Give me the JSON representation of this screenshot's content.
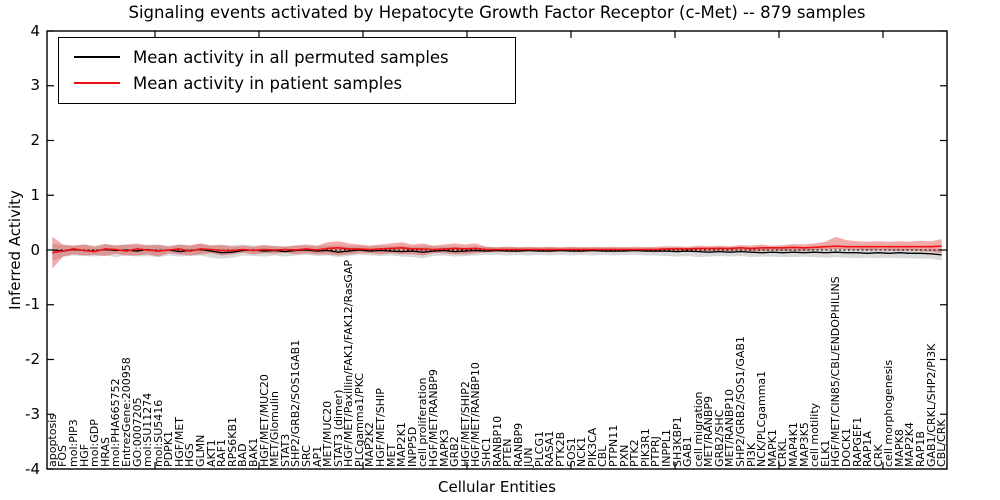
{
  "chart_data": {
    "type": "line",
    "title": "Signaling events activated by Hepatocyte Growth Factor Receptor (c-Met) -- 879 samples",
    "xlabel": "Cellular Entities",
    "ylabel": "Inferred Activity",
    "ylim": [
      -4,
      4
    ],
    "y_tick_labels": [
      "4",
      "3",
      "2",
      "1",
      "0",
      "-1",
      "-2",
      "-3",
      "-4"
    ],
    "grid": false,
    "legend_position": "upper left",
    "categories": [
      "apoptosis",
      "FOS",
      "mol:PIP3",
      "HGF",
      "mol:GDP",
      "HRAS",
      "mol:PHA665752",
      "EntrezGene:200958",
      "GO:0007205",
      "mol:SU11274",
      "mol:SU5416",
      "PDPK1",
      "HGF/MET",
      "HGS",
      "GLMN",
      "AKT1",
      "RAF1",
      "RPS6KB1",
      "BAD",
      "BAK1",
      "HGF/MET/MUC20",
      "MET/Glomulin",
      "STAT3",
      "SHP2/GRB2/SOS1GAB1",
      "SRC",
      "AP1",
      "MET/MUC20",
      "STAT3 (dimer)",
      "HGF/MET/Paxillin/FAK1/FAK12/RasGAP",
      "PLCgamma1/PKC",
      "MAP2K2",
      "HGF/MET/SHIP",
      "MET",
      "MAP2K1",
      "INPP5D",
      "cell proliferation",
      "HGF/MET/RANBP9",
      "MAPK3",
      "GRB2",
      "HGF/MET/SHIP2",
      "HGF/MET/RANBP10",
      "SHC1",
      "RANBP10",
      "PTEN",
      "RANBP9",
      "JUN",
      "PLCG1",
      "RASA1",
      "PTK2B",
      "SOS1",
      "NCK1",
      "PIK3CA",
      "CBL",
      "PTPN11",
      "PXN",
      "PTK2",
      "PIK3R1",
      "PTPRJ",
      "INPPL1",
      "SH3KBP1",
      "GAB1",
      "cell migration",
      "MET/RANBP9",
      "GRB2/SHC",
      "MET/RANBP10",
      "SHP2/GRB2/SOS1/GAB1",
      "PI3K",
      "NCK/PLCgamma1",
      "MAPK1",
      "CRKL",
      "MAP4K1",
      "MAP3K5",
      "cell motility",
      "ELK1",
      "HGF/MET/CIN85/CBL/ENDOPHILINS",
      "DOCK1",
      "RAPGEF1",
      "RAP1A",
      "CRK",
      "cell morphogenesis",
      "MAPK8",
      "MAP2K4",
      "RAP1B",
      "GAB1/CRKL/SHP2/PI3K",
      "CBL/CRK"
    ],
    "series": [
      {
        "name": "Mean activity in all permuted samples",
        "color": "#000000",
        "stroke_width": 1.3,
        "values": [
          0.0,
          -0.02,
          0.01,
          -0.01,
          -0.02,
          0.01,
          -0.01,
          0.0,
          -0.02,
          0.01,
          -0.02,
          0.0,
          -0.03,
          -0.01,
          0.01,
          -0.02,
          -0.05,
          -0.04,
          -0.01,
          0.0,
          -0.02,
          -0.01,
          -0.03,
          -0.01,
          0.0,
          -0.02,
          -0.01,
          -0.04,
          -0.02,
          0.0,
          -0.02,
          -0.01,
          -0.02,
          -0.03,
          -0.02,
          -0.04,
          -0.02,
          -0.01,
          -0.03,
          -0.02,
          -0.01,
          -0.02,
          -0.01,
          -0.02,
          -0.02,
          -0.01,
          -0.02,
          -0.02,
          -0.01,
          -0.02,
          -0.02,
          -0.01,
          -0.02,
          -0.02,
          -0.02,
          -0.01,
          -0.02,
          -0.02,
          -0.02,
          -0.03,
          -0.02,
          -0.03,
          -0.04,
          -0.03,
          -0.04,
          -0.03,
          -0.04,
          -0.05,
          -0.04,
          -0.05,
          -0.04,
          -0.05,
          -0.04,
          -0.05,
          -0.04,
          -0.05,
          -0.05,
          -0.06,
          -0.05,
          -0.06,
          -0.05,
          -0.06,
          -0.06,
          -0.07,
          -0.09
        ]
      },
      {
        "name": "Mean activity in patient samples",
        "color": "#ee1111",
        "stroke_width": 1.6,
        "values": [
          -0.05,
          -0.02,
          0.02,
          -0.01,
          -0.03,
          0.02,
          0.01,
          -0.02,
          0.02,
          0.0,
          -0.02,
          0.0,
          0.02,
          -0.02,
          0.02,
          0.01,
          -0.01,
          -0.01,
          0.01,
          -0.01,
          0.01,
          0.0,
          0.01,
          0.0,
          0.02,
          0.0,
          0.03,
          0.04,
          0.02,
          0.02,
          0.01,
          0.02,
          0.03,
          0.04,
          0.02,
          0.02,
          0.01,
          0.02,
          0.03,
          0.02,
          0.03,
          0.01,
          0.01,
          0.01,
          0.01,
          0.01,
          0.01,
          0.01,
          0.01,
          0.01,
          0.01,
          0.01,
          0.01,
          0.01,
          0.01,
          0.01,
          0.01,
          0.01,
          0.02,
          0.02,
          0.02,
          0.03,
          0.03,
          0.03,
          0.03,
          0.04,
          0.03,
          0.04,
          0.04,
          0.04,
          0.05,
          0.04,
          0.05,
          0.06,
          0.07,
          0.06,
          0.06,
          0.06,
          0.06,
          0.06,
          0.06,
          0.06,
          0.06,
          0.06,
          0.07
        ]
      }
    ],
    "bands": [
      {
        "name": "permuted-samples-std-band",
        "color": "rgba(120,120,120,0.28)",
        "upper": [
          0.12,
          0.09,
          0.08,
          0.1,
          0.08,
          0.11,
          0.09,
          0.1,
          0.08,
          0.1,
          0.09,
          0.08,
          0.1,
          0.09,
          0.11,
          0.09,
          0.08,
          0.09,
          0.1,
          0.08,
          0.09,
          0.08,
          0.07,
          0.09,
          0.08,
          0.07,
          0.08,
          0.09,
          0.07,
          0.08,
          0.07,
          0.08,
          0.07,
          0.08,
          0.07,
          0.08,
          0.07,
          0.06,
          0.07,
          0.06,
          0.07,
          0.06,
          0.05,
          0.06,
          0.05,
          0.05,
          0.05,
          0.05,
          0.04,
          0.05,
          0.05,
          0.04,
          0.05,
          0.04,
          0.05,
          0.04,
          0.05,
          0.04,
          0.04,
          0.05,
          0.04,
          0.04,
          0.04,
          0.05,
          0.04,
          0.04,
          0.04,
          0.03,
          0.04,
          0.03,
          0.04,
          0.03,
          0.04,
          0.03,
          0.04,
          0.03,
          0.03,
          0.04,
          0.03,
          0.03,
          0.03,
          0.03,
          0.02,
          0.02,
          0.02
        ],
        "lower": [
          -0.2,
          -0.12,
          -0.1,
          -0.11,
          -0.12,
          -0.1,
          -0.13,
          -0.1,
          -0.12,
          -0.11,
          -0.13,
          -0.1,
          -0.12,
          -0.11,
          -0.1,
          -0.14,
          -0.16,
          -0.14,
          -0.1,
          -0.11,
          -0.12,
          -0.1,
          -0.12,
          -0.1,
          -0.09,
          -0.11,
          -0.1,
          -0.13,
          -0.11,
          -0.09,
          -0.1,
          -0.11,
          -0.1,
          -0.12,
          -0.13,
          -0.15,
          -0.11,
          -0.1,
          -0.12,
          -0.11,
          -0.1,
          -0.09,
          -0.09,
          -0.1,
          -0.09,
          -0.1,
          -0.09,
          -0.1,
          -0.09,
          -0.1,
          -0.09,
          -0.1,
          -0.09,
          -0.1,
          -0.09,
          -0.09,
          -0.1,
          -0.1,
          -0.11,
          -0.12,
          -0.11,
          -0.13,
          -0.12,
          -0.11,
          -0.12,
          -0.11,
          -0.13,
          -0.12,
          -0.12,
          -0.13,
          -0.13,
          -0.12,
          -0.13,
          -0.14,
          -0.13,
          -0.14,
          -0.15,
          -0.14,
          -0.15,
          -0.14,
          -0.15,
          -0.15,
          -0.16,
          -0.16,
          -0.19
        ]
      },
      {
        "name": "patient-samples-std-band",
        "color": "rgba(225,55,55,0.42)",
        "upper": [
          0.24,
          0.1,
          0.08,
          0.1,
          0.06,
          0.11,
          0.08,
          0.1,
          0.12,
          0.08,
          0.1,
          0.06,
          0.1,
          0.08,
          0.12,
          0.08,
          0.1,
          0.06,
          0.08,
          0.06,
          0.09,
          0.07,
          0.06,
          0.08,
          0.1,
          0.08,
          0.14,
          0.16,
          0.12,
          0.1,
          0.08,
          0.1,
          0.12,
          0.14,
          0.1,
          0.12,
          0.08,
          0.1,
          0.12,
          0.1,
          0.12,
          0.06,
          0.05,
          0.06,
          0.05,
          0.06,
          0.05,
          0.06,
          0.05,
          0.06,
          0.05,
          0.06,
          0.05,
          0.06,
          0.05,
          0.06,
          0.05,
          0.06,
          0.07,
          0.07,
          0.06,
          0.08,
          0.07,
          0.08,
          0.07,
          0.09,
          0.08,
          0.1,
          0.08,
          0.09,
          0.11,
          0.1,
          0.12,
          0.15,
          0.24,
          0.18,
          0.16,
          0.15,
          0.16,
          0.15,
          0.16,
          0.15,
          0.17,
          0.16,
          0.2
        ],
        "lower": [
          -0.34,
          -0.12,
          -0.08,
          -0.1,
          -0.09,
          -0.11,
          -0.07,
          -0.1,
          -0.1,
          -0.08,
          -0.12,
          -0.06,
          -0.08,
          -0.1,
          -0.08,
          -0.06,
          -0.1,
          -0.08,
          -0.05,
          -0.08,
          -0.06,
          -0.07,
          -0.05,
          -0.08,
          -0.06,
          -0.08,
          -0.08,
          -0.1,
          -0.08,
          -0.06,
          -0.06,
          -0.08,
          -0.06,
          -0.08,
          -0.08,
          -0.1,
          -0.06,
          -0.06,
          -0.08,
          -0.08,
          -0.06,
          -0.04,
          -0.04,
          -0.03,
          -0.04,
          -0.03,
          -0.03,
          -0.04,
          -0.03,
          -0.03,
          -0.04,
          -0.03,
          -0.03,
          -0.04,
          -0.03,
          -0.03,
          -0.03,
          -0.04,
          -0.03,
          -0.04,
          -0.03,
          -0.03,
          -0.02,
          -0.03,
          -0.02,
          -0.02,
          -0.02,
          -0.02,
          -0.01,
          -0.02,
          -0.01,
          -0.02,
          0.0,
          0.01,
          0.02,
          0.01,
          0.0,
          -0.01,
          0.0,
          -0.01,
          -0.02,
          -0.01,
          -0.02,
          -0.03,
          -0.06
        ]
      }
    ],
    "reference_line": {
      "y": 0,
      "style": "dashed",
      "color": "#000000"
    }
  }
}
